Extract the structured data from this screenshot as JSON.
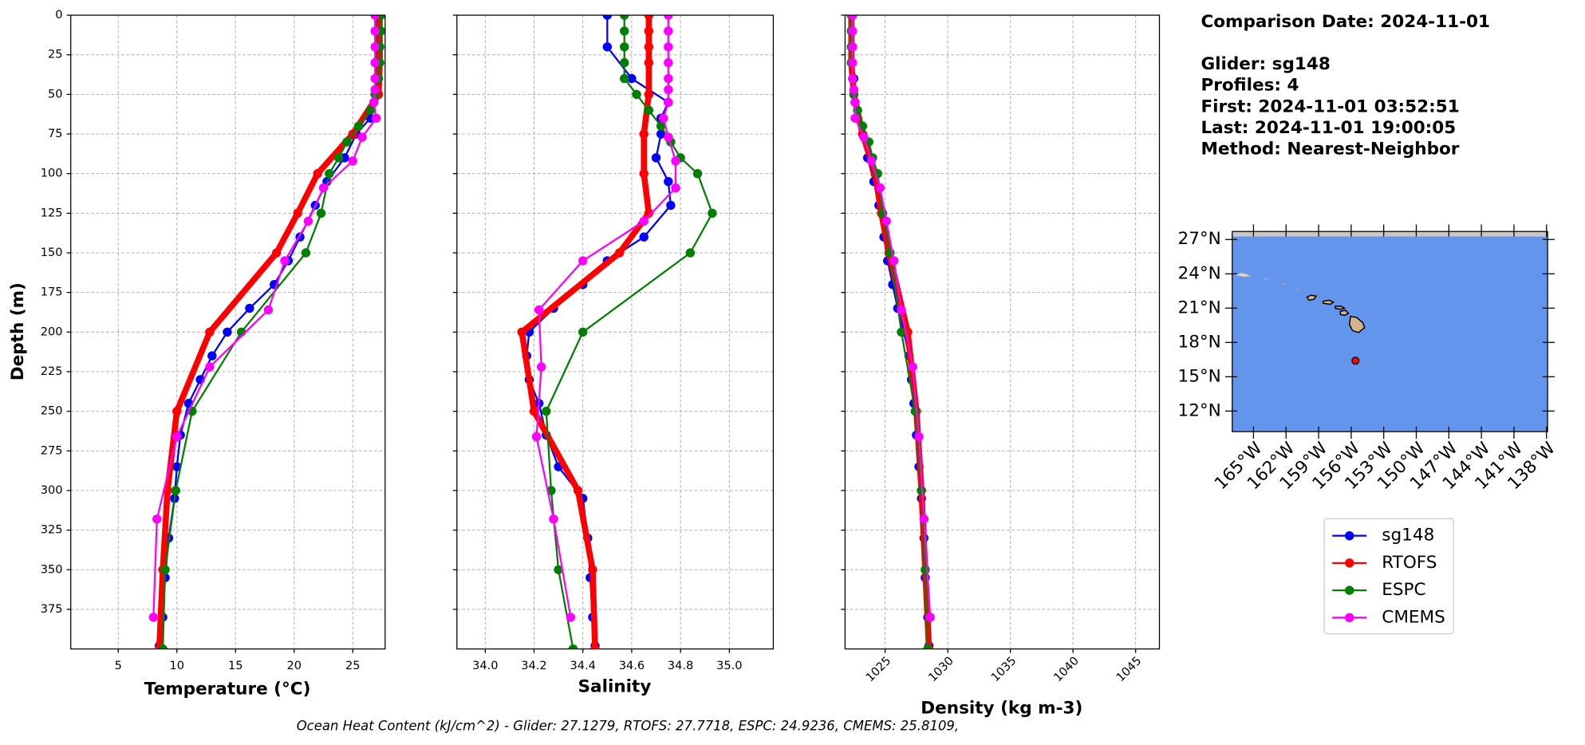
{
  "info": {
    "comparison_date": "Comparison Date: 2024-11-01",
    "glider": "Glider: sg148",
    "profiles": "Profiles: 4",
    "first": "First: 2024-11-01 03:52:51",
    "last": "Last: 2024-11-01 19:00:05",
    "method": "Method: Nearest-Neighbor"
  },
  "footer": "Ocean Heat Content (kJ/cm^2) - Glider: 27.1279,  RTOFS: 27.7718,  ESPC: 24.9236,  CMEMS: 25.8109,",
  "legend": [
    {
      "name": "sg148",
      "color": "#0000ff"
    },
    {
      "name": "RTOFS",
      "color": "#ff0000"
    },
    {
      "name": "ESPC",
      "color": "#008000"
    },
    {
      "name": "CMEMS",
      "color": "#ff00ff"
    }
  ],
  "chart_data": [
    {
      "type": "profile",
      "x_label": "Temperature (°C)",
      "y_label": "Depth (m)",
      "xlim": [
        0.95,
        27.76
      ],
      "xticks": [
        5,
        10,
        15,
        20,
        25
      ],
      "ylim": [
        400,
        0
      ],
      "yticks": [
        0,
        25,
        50,
        75,
        100,
        125,
        150,
        175,
        200,
        225,
        250,
        275,
        300,
        325,
        350,
        375
      ],
      "grid": true,
      "series": [
        {
          "y": [
            0,
            20,
            40,
            55,
            65,
            75,
            90,
            105,
            120,
            140,
            155,
            170,
            185,
            200,
            215,
            230,
            245,
            265,
            285,
            305,
            330,
            355,
            380,
            398
          ],
          "x": [
            27,
            27,
            27,
            26.8,
            26.5,
            25.3,
            24.3,
            22.8,
            21.8,
            20.5,
            19.5,
            18.3,
            16.2,
            14.3,
            13,
            12,
            11,
            10.3,
            10,
            9.8,
            9.3,
            9,
            8.8,
            8.5
          ]
        },
        {
          "y": [
            0,
            10,
            20,
            30,
            50,
            75,
            100,
            125,
            150,
            200,
            250,
            300,
            350,
            400
          ],
          "x": [
            27.3,
            27.3,
            27.3,
            27.3,
            27.2,
            25,
            22,
            20.3,
            18.5,
            12.8,
            10,
            9.2,
            8.8,
            8.5
          ]
        },
        {
          "y": [
            0,
            10,
            20,
            30,
            40,
            50,
            60,
            70,
            80,
            90,
            100,
            125,
            150,
            200,
            250,
            300,
            350,
            400
          ],
          "x": [
            27.4,
            27.4,
            27.3,
            27.3,
            27.2,
            26.9,
            26.5,
            25.5,
            24.5,
            23.8,
            23,
            22.3,
            21,
            15.5,
            11.3,
            9.9,
            9,
            8.8
          ]
        },
        {
          "y": [
            0,
            10,
            20,
            30,
            40,
            47,
            55,
            65,
            77,
            92,
            109,
            130,
            155,
            186,
            222,
            266,
            318,
            380
          ],
          "x": [
            26.9,
            26.9,
            26.9,
            26.9,
            26.9,
            26.9,
            26.8,
            27,
            25.8,
            25,
            22.5,
            21.2,
            19.2,
            17.8,
            12.8,
            10,
            8.3,
            8
          ]
        }
      ]
    },
    {
      "type": "profile",
      "x_label": "Salinity",
      "xlim": [
        33.884,
        35.18
      ],
      "xticks": [
        {
          "value": 34,
          "label": "34.0"
        },
        {
          "value": 34.2,
          "label": "34.2"
        },
        {
          "value": 34.4,
          "label": "34.4"
        },
        {
          "value": 34.6,
          "label": "34.6"
        },
        {
          "value": 34.8,
          "label": "34.8"
        },
        {
          "value": 35,
          "label": "35.0"
        }
      ],
      "ylim": [
        400,
        0
      ],
      "grid": true,
      "series": [
        {
          "y": [
            0,
            20,
            40,
            55,
            65,
            75,
            90,
            105,
            120,
            140,
            155,
            170,
            185,
            200,
            215,
            230,
            245,
            265,
            285,
            305,
            330,
            355,
            380,
            398
          ],
          "x": [
            34.5,
            34.5,
            34.6,
            34.75,
            34.72,
            34.72,
            34.7,
            34.75,
            34.76,
            34.65,
            34.5,
            34.4,
            34.28,
            34.18,
            34.17,
            34.18,
            34.22,
            34.25,
            34.3,
            34.4,
            34.42,
            34.43,
            34.44,
            34.45
          ]
        },
        {
          "y": [
            0,
            10,
            20,
            30,
            50,
            75,
            100,
            125,
            150,
            200,
            250,
            300,
            350,
            400
          ],
          "x": [
            34.67,
            34.67,
            34.67,
            34.67,
            34.67,
            34.65,
            34.65,
            34.67,
            34.55,
            34.15,
            34.2,
            34.38,
            34.44,
            34.45
          ]
        },
        {
          "y": [
            0,
            10,
            20,
            30,
            40,
            50,
            60,
            70,
            80,
            90,
            100,
            125,
            150,
            200,
            250,
            300,
            350,
            400
          ],
          "x": [
            34.57,
            34.57,
            34.57,
            34.57,
            34.57,
            34.62,
            34.67,
            34.72,
            34.76,
            34.8,
            34.87,
            34.93,
            34.84,
            34.4,
            34.25,
            34.27,
            34.3,
            34.36
          ]
        },
        {
          "y": [
            0,
            10,
            20,
            30,
            40,
            47,
            55,
            65,
            77,
            92,
            109,
            130,
            155,
            186,
            222,
            266,
            318,
            380
          ],
          "x": [
            34.75,
            34.75,
            34.75,
            34.75,
            34.75,
            34.75,
            34.75,
            34.73,
            34.75,
            34.78,
            34.78,
            34.65,
            34.4,
            34.22,
            34.23,
            34.21,
            34.28,
            34.35
          ]
        }
      ]
    },
    {
      "type": "profile",
      "x_label": "Density (kg m-3)",
      "xlim": [
        1021.8,
        1046.9
      ],
      "xticks": [
        1025,
        1030,
        1035,
        1040,
        1045
      ],
      "ylim": [
        400,
        0
      ],
      "grid": true,
      "rotate_xticks": true,
      "series": [
        {
          "y": [
            0,
            20,
            40,
            55,
            65,
            75,
            90,
            105,
            120,
            140,
            155,
            170,
            185,
            200,
            215,
            230,
            245,
            265,
            285,
            305,
            330,
            355,
            380,
            398
          ],
          "x": [
            1022.4,
            1022.4,
            1022.5,
            1022.6,
            1022.8,
            1023.2,
            1023.6,
            1024.1,
            1024.5,
            1024.9,
            1025.2,
            1025.6,
            1026,
            1026.5,
            1026.9,
            1027.1,
            1027.3,
            1027.5,
            1027.7,
            1027.9,
            1028.1,
            1028.2,
            1028.4,
            1028.5
          ]
        },
        {
          "y": [
            0,
            10,
            20,
            30,
            50,
            75,
            100,
            125,
            150,
            200,
            250,
            300,
            350,
            400
          ],
          "x": [
            1022.3,
            1022.3,
            1022.3,
            1022.3,
            1022.5,
            1023.2,
            1024.2,
            1024.7,
            1025.3,
            1026.8,
            1027.5,
            1027.9,
            1028.2,
            1028.5
          ]
        },
        {
          "y": [
            0,
            10,
            20,
            30,
            40,
            50,
            60,
            70,
            80,
            90,
            100,
            125,
            150,
            200,
            250,
            300,
            350,
            400
          ],
          "x": [
            1022.3,
            1022.3,
            1022.3,
            1022.3,
            1022.4,
            1022.5,
            1022.8,
            1023.2,
            1023.7,
            1024,
            1024.4,
            1024.8,
            1025.4,
            1026.3,
            1027.4,
            1027.9,
            1028.2,
            1028.4
          ]
        },
        {
          "y": [
            0,
            10,
            20,
            30,
            40,
            47,
            55,
            65,
            77,
            92,
            109,
            130,
            155,
            186,
            222,
            266,
            318,
            380
          ],
          "x": [
            1022.4,
            1022.4,
            1022.4,
            1022.4,
            1022.4,
            1022.5,
            1022.6,
            1022.6,
            1023.3,
            1023.9,
            1024.6,
            1025.1,
            1025.7,
            1026.3,
            1027.2,
            1027.7,
            1028.1,
            1028.6
          ]
        }
      ]
    },
    {
      "type": "map",
      "xlim": [
        -166.96,
        -137.9
      ],
      "xticks": [
        {
          "value": -165,
          "label": "165°W"
        },
        {
          "value": -162,
          "label": "162°W"
        },
        {
          "value": -159,
          "label": "159°W"
        },
        {
          "value": -156,
          "label": "156°W"
        },
        {
          "value": -153,
          "label": "153°W"
        },
        {
          "value": -150,
          "label": "150°W"
        },
        {
          "value": -147,
          "label": "147°W"
        },
        {
          "value": -144,
          "label": "144°W"
        },
        {
          "value": -141,
          "label": "141°W"
        },
        {
          "value": -138,
          "label": "138°W"
        }
      ],
      "ylim": [
        10.2,
        27.7
      ],
      "yticks": [
        {
          "value": 27,
          "label": "27°N"
        },
        {
          "value": 24,
          "label": "24°N"
        },
        {
          "value": 21,
          "label": "21°N"
        },
        {
          "value": 18,
          "label": "18°N"
        },
        {
          "value": 15,
          "label": "15°N"
        },
        {
          "value": 12,
          "label": "12°N"
        }
      ],
      "x": [
        -155.6
      ],
      "y": [
        16.4
      ],
      "color": "#ff0000"
    }
  ]
}
